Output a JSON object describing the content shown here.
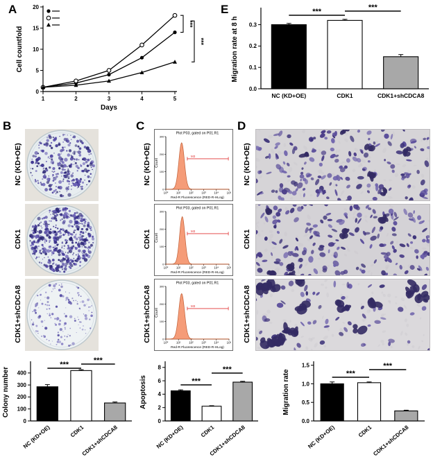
{
  "panel_letters": [
    "A",
    "B",
    "C",
    "D",
    "E"
  ],
  "row_labels": [
    "NC (KD+OE)",
    "CDK1",
    "CDK1+shCDCA8"
  ],
  "colors": {
    "bar_black": "#000000",
    "bar_white": "#ffffff",
    "bar_gray": "#a8a8a8",
    "colony_stain": "#4a3f9a",
    "cell_stain": "#5b4e9b",
    "flow_peak_fill": "#f59c78",
    "flow_peak_stroke": "#c06038",
    "flow_gate_red": "#e03434"
  },
  "chart_data": [
    {
      "id": "A-growth",
      "type": "line",
      "xlabel": "Days",
      "ylabel": "Cell countfold",
      "x": [
        1,
        2,
        3,
        4,
        5
      ],
      "ylim": [
        0,
        20
      ],
      "yticks": [
        0,
        5,
        10,
        15,
        20
      ],
      "series": [
        {
          "name": "NC (KD+OE)",
          "marker": "circle-filled",
          "values": [
            1,
            2,
            4,
            8,
            14
          ]
        },
        {
          "name": "CDK1",
          "marker": "circle-open",
          "values": [
            1,
            2.5,
            5,
            11,
            18
          ]
        },
        {
          "name": "CDK1+shCDCA8",
          "marker": "triangle-filled",
          "values": [
            1,
            1.5,
            2.5,
            4.5,
            7
          ]
        }
      ],
      "significance": [
        {
          "compare": [
            "CDK1",
            "NC (KD+OE)"
          ],
          "label": "***"
        },
        {
          "compare": [
            "CDK1",
            "CDK1+shCDCA8"
          ],
          "label": "***"
        }
      ]
    },
    {
      "id": "E-migration8h",
      "type": "bar",
      "ylabel": "Migration rate at 8 h",
      "ylim": [
        0,
        0.37
      ],
      "yticks": [
        0,
        0.1,
        0.2,
        0.3
      ],
      "ytick_decimals": 1,
      "categories": [
        "NC (KD+OE)",
        "CDK1",
        "CDK1+shCDCA8"
      ],
      "values": [
        0.3,
        0.32,
        0.15
      ],
      "errors": [
        0.006,
        0.005,
        0.01
      ],
      "bar_colors": [
        "#000000",
        "#ffffff",
        "#a8a8a8"
      ],
      "significance": [
        {
          "from": 0,
          "to": 1,
          "label": "***"
        },
        {
          "from": 1,
          "to": 2,
          "label": "***"
        }
      ]
    },
    {
      "id": "B-colony",
      "type": "bar",
      "ylabel": "Colony number",
      "ylim": [
        0,
        480
      ],
      "yticks": [
        0,
        100,
        200,
        300,
        400
      ],
      "categories": [
        "NC (KD+OE)",
        "CDK1",
        "CDK1+shCDCA8"
      ],
      "values": [
        285,
        420,
        150
      ],
      "errors": [
        18,
        8,
        8
      ],
      "bar_colors": [
        "#000000",
        "#ffffff",
        "#a8a8a8"
      ],
      "significance": [
        {
          "from": 0,
          "to": 1,
          "label": "***"
        },
        {
          "from": 1,
          "to": 2,
          "label": "***"
        }
      ]
    },
    {
      "id": "C-apoptosis",
      "type": "bar",
      "ylabel": "Apoptosis",
      "ylim": [
        0,
        8.6
      ],
      "yticks": [
        0,
        2,
        4,
        6,
        8
      ],
      "categories": [
        "NC (KD+OE)",
        "CDK1",
        "CDK1+shCDCA8"
      ],
      "values": [
        4.5,
        2.2,
        5.8
      ],
      "errors": [
        0.15,
        0.08,
        0.12
      ],
      "bar_colors": [
        "#000000",
        "#ffffff",
        "#a8a8a8"
      ],
      "significance": [
        {
          "from": 0,
          "to": 1,
          "label": "***"
        },
        {
          "from": 1,
          "to": 2,
          "label": "***"
        }
      ]
    },
    {
      "id": "D-migration",
      "type": "bar",
      "ylabel": "Migration rate",
      "ylim": [
        0,
        1.55
      ],
      "yticks": [
        0,
        0.5,
        1,
        1.5
      ],
      "ytick_decimals": 1,
      "categories": [
        "NC (KD+OE)",
        "CDK1",
        "CDK1+shCDCA8"
      ],
      "values": [
        1,
        1.03,
        0.27
      ],
      "errors": [
        0.05,
        0.02,
        0.02
      ],
      "bar_colors": [
        "#000000",
        "#ffffff",
        "#a8a8a8"
      ],
      "significance": [
        {
          "from": 0,
          "to": 1,
          "label": "***"
        },
        {
          "from": 1,
          "to": 2,
          "label": "***"
        }
      ]
    },
    {
      "id": "C-flow",
      "type": "area",
      "title": "Plot P03, gated on P01.R1",
      "xlabel": "Red-R Fluorescence (RED-R-HLog)",
      "ylabel": "Count",
      "x_scale": "log10",
      "x_decades": [
        0,
        1,
        2,
        3,
        4,
        5
      ],
      "count_ticks": [
        0,
        100,
        200,
        300
      ],
      "gate": {
        "label": "M3",
        "from_log": 1.7,
        "to_log": 4.95,
        "height_frac": 0.42
      },
      "panels": [
        {
          "label": "NC (KD+OE)",
          "peak_log": 1.25,
          "peak_sigma": 0.22,
          "peak_height_frac": 0.88
        },
        {
          "label": "CDK1",
          "peak_log": 1.3,
          "peak_sigma": 0.21,
          "peak_height_frac": 0.9
        },
        {
          "label": "CDK1+shCDCA8",
          "peak_log": 1.25,
          "peak_sigma": 0.23,
          "peak_height_frac": 0.86
        }
      ]
    }
  ]
}
